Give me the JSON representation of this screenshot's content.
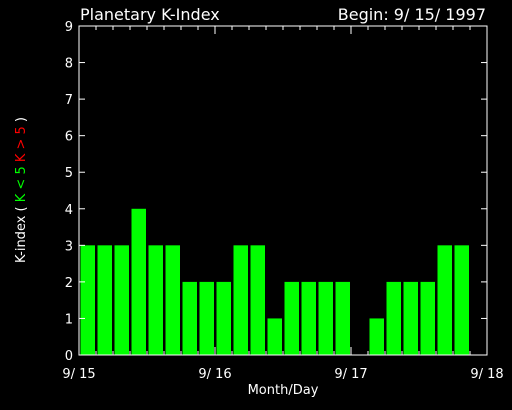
{
  "chart_data": {
    "type": "bar",
    "title": "Planetary K-Index",
    "begin_label": "Begin: 9/ 15/ 1997",
    "xlabel": "Month/Day",
    "ylabel_parts": [
      {
        "text": "K-index",
        "color": "#ffffff"
      },
      {
        "text": "(",
        "color": "#ffffff"
      },
      {
        "text": "K < 5",
        "color": "#00ff00"
      },
      {
        "text": "K > 5",
        "color": "#ff0000"
      },
      {
        "text": ")",
        "color": "#ffffff"
      }
    ],
    "ylim": [
      0,
      9
    ],
    "yticks": [
      "0",
      "1",
      "2",
      "3",
      "4",
      "5",
      "6",
      "7",
      "8",
      "9"
    ],
    "xticks": [
      "9/ 15",
      "9/ 16",
      "9/ 17",
      "9/ 18"
    ],
    "bins_per_day": 8,
    "values": [
      3,
      3,
      3,
      4,
      3,
      3,
      2,
      2,
      2,
      3,
      3,
      1,
      2,
      2,
      2,
      2,
      0,
      1,
      2,
      2,
      2,
      3,
      3,
      0
    ],
    "bar_color": "#00ff00",
    "axis_color": "#ffffff",
    "background": "#000000"
  }
}
